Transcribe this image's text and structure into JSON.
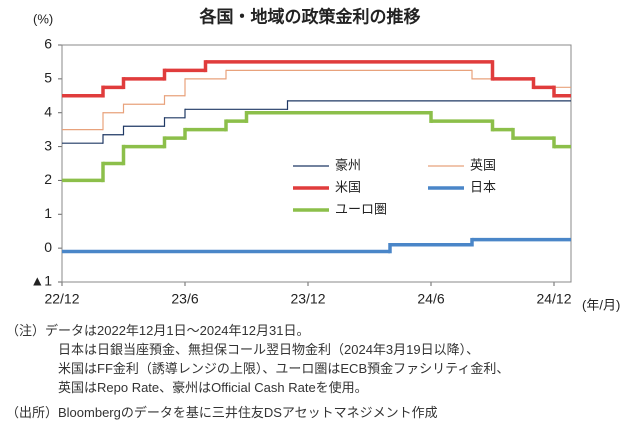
{
  "chart_data": {
    "type": "step",
    "title": "各国・地域の政策金利の推移",
    "y_unit": "(%)",
    "x_unit": "(年/月)",
    "categories": [
      "22/12",
      null,
      null,
      null,
      null,
      null,
      "23/6",
      null,
      null,
      null,
      null,
      null,
      "23/12",
      null,
      null,
      null,
      null,
      null,
      "24/6",
      null,
      null,
      null,
      null,
      null,
      "24/12"
    ],
    "ylim": [
      -1,
      6
    ],
    "yticks": [
      {
        "value": -1,
        "label": "▲1"
      },
      0,
      1,
      2,
      3,
      4,
      5,
      6
    ],
    "series": [
      {
        "name": "豪州",
        "color": "#1f3864",
        "width": "thin",
        "values": [
          3.1,
          3.1,
          3.35,
          3.6,
          3.6,
          3.85,
          4.1,
          4.1,
          4.1,
          4.1,
          4.1,
          4.35,
          4.35,
          4.35,
          4.35,
          4.35,
          4.35,
          4.35,
          4.35,
          4.35,
          4.35,
          4.35,
          4.35,
          4.35,
          4.35
        ]
      },
      {
        "name": "英国",
        "color": "#e8a27c",
        "width": "thin",
        "values": [
          3.5,
          3.5,
          4.0,
          4.25,
          4.25,
          4.5,
          5.0,
          5.0,
          5.25,
          5.25,
          5.25,
          5.25,
          5.25,
          5.25,
          5.25,
          5.25,
          5.25,
          5.25,
          5.25,
          5.25,
          5.0,
          5.0,
          5.0,
          4.75,
          4.75
        ]
      },
      {
        "name": "米国",
        "color": "#e03c3c",
        "width": "thick",
        "values": [
          4.5,
          4.5,
          4.75,
          5.0,
          5.0,
          5.25,
          5.25,
          5.5,
          5.5,
          5.5,
          5.5,
          5.5,
          5.5,
          5.5,
          5.5,
          5.5,
          5.5,
          5.5,
          5.5,
          5.5,
          5.5,
          5.0,
          5.0,
          4.75,
          4.5
        ]
      },
      {
        "name": "日本",
        "color": "#4a86c8",
        "width": "thick",
        "values": [
          -0.1,
          -0.1,
          -0.1,
          -0.1,
          -0.1,
          -0.1,
          -0.1,
          -0.1,
          -0.1,
          -0.1,
          -0.1,
          -0.1,
          -0.1,
          -0.1,
          -0.1,
          -0.1,
          0.1,
          0.1,
          0.1,
          0.1,
          0.25,
          0.25,
          0.25,
          0.25,
          0.25
        ]
      },
      {
        "name": "ユーロ圏",
        "color": "#8cbf4a",
        "width": "thick",
        "values": [
          2.0,
          2.0,
          2.5,
          3.0,
          3.0,
          3.25,
          3.5,
          3.5,
          3.75,
          4.0,
          4.0,
          4.0,
          4.0,
          4.0,
          4.0,
          4.0,
          4.0,
          4.0,
          3.75,
          3.75,
          3.75,
          3.5,
          3.25,
          3.25,
          3.0
        ]
      }
    ],
    "notes": [
      "（注）データは2022年12月1日～2024年12月31日。",
      "日本は日銀当座預金、無担保コール翌日物金利（2024年3月19日以降）、",
      "米国はFF金利（誘導レンジの上限）、ユーロ圏はECB預金ファシリティ金利、",
      "英国はRepo Rate、豪州はOfficial Cash Rateを使用。",
      "（出所）Bloombergのデータを基に三井住友DSアセットマネジメント作成"
    ]
  }
}
